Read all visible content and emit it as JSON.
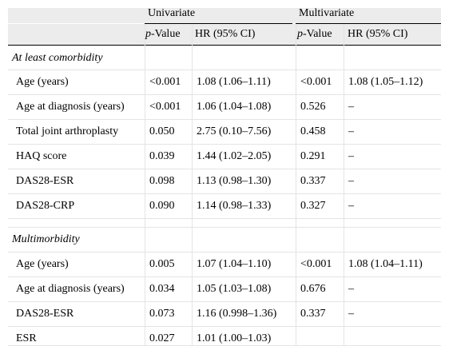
{
  "header": {
    "group_univariate": "Univariate",
    "group_multivariate": "Multivariate",
    "p_value_italic": "p",
    "p_value_suffix": "-Value",
    "hr_label": "HR (95% CI)"
  },
  "sections": [
    {
      "title": "At least comorbidity",
      "rows": [
        {
          "label": "Age (years)",
          "u_p": "<0.001",
          "u_hr": "1.08 (1.06–1.11)",
          "m_p": "<0.001",
          "m_hr": "1.08 (1.05–1.12)"
        },
        {
          "label": "Age at diagnosis (years)",
          "u_p": "<0.001",
          "u_hr": "1.06 (1.04–1.08)",
          "m_p": "0.526",
          "m_hr": "–"
        },
        {
          "label": "Total joint arthroplasty",
          "u_p": "0.050",
          "u_hr": "2.75 (0.10–7.56)",
          "m_p": "0.458",
          "m_hr": "–"
        },
        {
          "label": "HAQ score",
          "u_p": "0.039",
          "u_hr": "1.44 (1.02–2.05)",
          "m_p": "0.291",
          "m_hr": "–"
        },
        {
          "label": "DAS28-ESR",
          "u_p": "0.098",
          "u_hr": "1.13 (0.98–1.30)",
          "m_p": "0.337",
          "m_hr": "–"
        },
        {
          "label": "DAS28-CRP",
          "u_p": "0.090",
          "u_hr": "1.14 (0.98–1.33)",
          "m_p": "0.327",
          "m_hr": "–"
        }
      ]
    },
    {
      "title": "Multimorbidity",
      "rows": [
        {
          "label": "Age (years)",
          "u_p": "0.005",
          "u_hr": "1.07 (1.04–1.10)",
          "m_p": "<0.001",
          "m_hr": "1.08 (1.04–1.11)"
        },
        {
          "label": "Age at diagnosis (years)",
          "u_p": "0.034",
          "u_hr": "1.05 (1.03–1.08)",
          "m_p": "0.676",
          "m_hr": "–"
        },
        {
          "label": "DAS28-ESR",
          "u_p": "0.073",
          "u_hr": "1.16 (0.998–1.36)",
          "m_p": "0.337",
          "m_hr": "–"
        },
        {
          "label": "ESR",
          "u_p": "0.027",
          "u_hr": "1.01 (1.00–1.03)",
          "m_p": "",
          "m_hr": ""
        }
      ]
    }
  ]
}
